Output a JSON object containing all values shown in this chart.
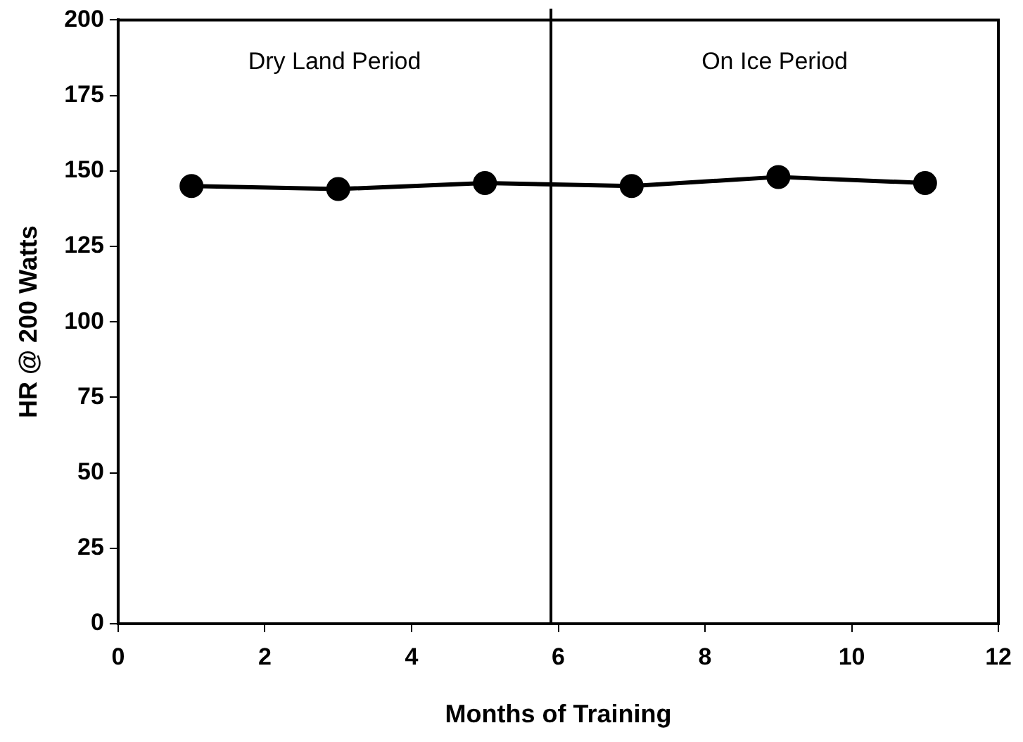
{
  "chart_data": {
    "type": "line",
    "xlabel": "Months of Training",
    "ylabel": "HR @ 200 Watts",
    "x": [
      1,
      3,
      5,
      7,
      9,
      11
    ],
    "series": [
      {
        "color": "#000000",
        "values": [
          145,
          144,
          146,
          145,
          148,
          146
        ]
      }
    ],
    "xlim": [
      0,
      12
    ],
    "xticks": [
      0,
      2,
      4,
      6,
      8,
      10,
      12
    ],
    "ylim": [
      0,
      200
    ],
    "yticks": [
      0,
      25,
      50,
      75,
      100,
      125,
      150,
      175,
      200
    ],
    "ref_lines": [
      {
        "axis": "x",
        "value": 5.9,
        "label": null,
        "color": "#000000"
      }
    ],
    "annotations": [
      "Dry Land Period",
      "On Ice Period"
    ],
    "marker": "circle",
    "line_style": "solid",
    "grid": false,
    "legend": false
  }
}
